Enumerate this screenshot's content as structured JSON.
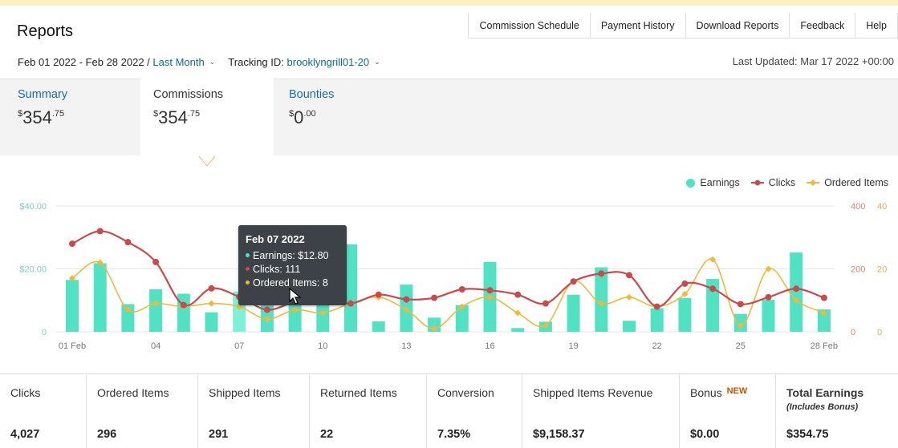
{
  "top_nav": [
    "Commission Schedule",
    "Payment History",
    "Download Reports",
    "Feedback",
    "Help"
  ],
  "page_title": "Reports",
  "filters": {
    "date_range": "Feb 01 2022 - Feb 28 2022 /",
    "period": "Last Month",
    "tracking_label": "Tracking ID:",
    "tracking_id": "brooklyngrill01-20",
    "last_updated": "Last Updated: Mar 17 2022 +00:00"
  },
  "tabs": [
    {
      "label": "Summary",
      "currency": "$",
      "whole": "354",
      "cents": ".75"
    },
    {
      "label": "Commissions",
      "currency": "$",
      "whole": "354",
      "cents": ".75"
    },
    {
      "label": "Bounties",
      "currency": "$",
      "whole": "0",
      "cents": ".00"
    }
  ],
  "legend": {
    "earnings": "Earnings",
    "clicks": "Clicks",
    "ordered": "Ordered Items"
  },
  "tooltip": {
    "date": "Feb 07 2022",
    "earnings": "Earnings: $12.80",
    "clicks": "Clicks: 111",
    "ordered": "Ordered Items: 8"
  },
  "colors": {
    "earnings": "#51e1c3",
    "clicks": "#c94a4a",
    "ordered": "#f0b83a",
    "link": "#1a6bb0"
  },
  "chart_data": {
    "type": "bar+line",
    "categories": [
      "01 Feb",
      "02",
      "03",
      "04",
      "05",
      "06",
      "07",
      "08",
      "09",
      "10",
      "11",
      "12",
      "13",
      "14",
      "15",
      "16",
      "17",
      "18",
      "19",
      "20",
      "21",
      "22",
      "23",
      "24",
      "25",
      "26",
      "27",
      "28 Feb"
    ],
    "x_tick_labels": [
      "01 Feb",
      "04",
      "07",
      "10",
      "13",
      "16",
      "19",
      "22",
      "25",
      "28 Feb"
    ],
    "y_left": {
      "ticks": [
        "$40.00",
        "$20.00",
        "0"
      ],
      "range": [
        0,
        40
      ]
    },
    "y_right": [
      {
        "ticks": [
          "400",
          "200",
          "0"
        ],
        "range": [
          0,
          400
        ]
      },
      {
        "ticks": [
          "40",
          "20",
          "0"
        ],
        "range": [
          0,
          40
        ]
      }
    ],
    "series": [
      {
        "name": "Earnings",
        "axis": "left",
        "values": [
          16.5,
          21.8,
          8.8,
          13.5,
          12.1,
          6.2,
          12.8,
          18.2,
          9.5,
          11.5,
          27.8,
          3.3,
          15.0,
          4.5,
          8.5,
          22.2,
          1.2,
          3.2,
          11.8,
          20.5,
          3.5,
          7.5,
          10.7,
          16.8,
          5.7,
          10.2,
          25.2,
          7.1
        ]
      },
      {
        "name": "Clicks",
        "axis": "right-1",
        "values": [
          280,
          320,
          285,
          222,
          85,
          138,
          111,
          70,
          95,
          103,
          90,
          118,
          103,
          108,
          135,
          132,
          118,
          90,
          160,
          185,
          180,
          80,
          153,
          137,
          88,
          110,
          137,
          108
        ]
      },
      {
        "name": "Ordered Items",
        "axis": "right-2",
        "values": [
          17,
          22,
          7,
          9,
          8,
          9,
          8,
          4,
          7,
          6,
          9,
          11,
          7,
          1,
          8,
          11,
          6,
          2,
          16,
          9,
          11,
          8,
          12,
          23,
          2,
          20,
          10,
          6
        ]
      }
    ]
  },
  "stats": [
    {
      "label": "Clicks",
      "value": "4,027"
    },
    {
      "label": "Ordered Items",
      "value": "296"
    },
    {
      "label": "Shipped Items",
      "value": "291"
    },
    {
      "label": "Returned Items",
      "value": "22"
    },
    {
      "label": "Conversion",
      "value": "7.35%"
    },
    {
      "label": "Shipped Items Revenue",
      "value": "$9,158.37"
    },
    {
      "label": "Bonus",
      "badge": "NEW",
      "value": "$0.00"
    },
    {
      "label": "Total Earnings",
      "sub": "(Includes Bonus)",
      "value": "$354.75"
    }
  ]
}
